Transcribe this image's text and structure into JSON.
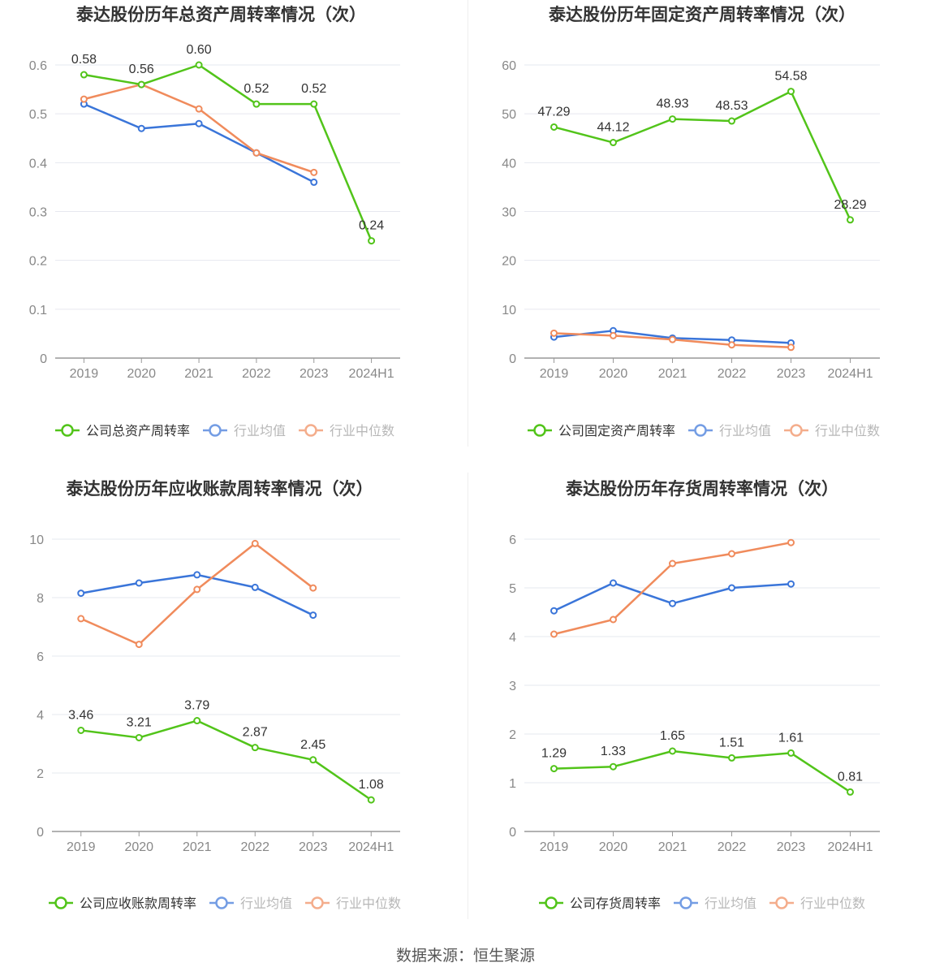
{
  "source": "数据来源：恒生聚源",
  "colors": {
    "company": "#52c41a",
    "avg": "#3a75d9",
    "median": "#f08b5c",
    "axis": "#999999",
    "grid": "#e6e8ef",
    "tick_text": "#888888",
    "title": "#333333"
  },
  "chart_data": [
    {
      "type": "line",
      "title": "泰达股份历年总资产周转率情况（次）",
      "categories": [
        "2019",
        "2020",
        "2021",
        "2022",
        "2023",
        "2024H1"
      ],
      "ylim": [
        0,
        0.6
      ],
      "yticks": [
        "0",
        "0.1",
        "0.2",
        "0.3",
        "0.4",
        "0.5",
        "0.6"
      ],
      "series": [
        {
          "name": "公司总资产周转率",
          "role": "company",
          "values": [
            0.58,
            0.56,
            0.6,
            0.52,
            0.52,
            0.24
          ],
          "labels": [
            "0.58",
            "0.56",
            "0.60",
            "0.52",
            "0.52",
            "0.24"
          ]
        },
        {
          "name": "行业均值",
          "role": "avg",
          "values": [
            0.52,
            0.47,
            0.48,
            0.42,
            0.36,
            null
          ]
        },
        {
          "name": "行业中位数",
          "role": "median",
          "values": [
            0.53,
            0.56,
            0.51,
            0.42,
            0.38,
            null
          ]
        }
      ],
      "grid": true,
      "legend": "bottom"
    },
    {
      "type": "line",
      "title": "泰达股份历年固定资产周转率情况（次）",
      "categories": [
        "2019",
        "2020",
        "2021",
        "2022",
        "2023",
        "2024H1"
      ],
      "ylim": [
        0,
        60
      ],
      "yticks": [
        "0",
        "10",
        "20",
        "30",
        "40",
        "50",
        "60"
      ],
      "series": [
        {
          "name": "公司固定资产周转率",
          "role": "company",
          "values": [
            47.29,
            44.12,
            48.93,
            48.53,
            54.58,
            28.29
          ],
          "labels": [
            "47.29",
            "44.12",
            "48.93",
            "48.53",
            "54.58",
            "28.29"
          ]
        },
        {
          "name": "行业均值",
          "role": "avg",
          "values": [
            4.3,
            5.6,
            4.1,
            3.7,
            3.1,
            null
          ]
        },
        {
          "name": "行业中位数",
          "role": "median",
          "values": [
            5.1,
            4.6,
            3.8,
            2.7,
            2.2,
            null
          ]
        }
      ],
      "grid": true,
      "legend": "bottom"
    },
    {
      "type": "line",
      "title": "泰达股份历年应收账款周转率情况（次）",
      "categories": [
        "2019",
        "2020",
        "2021",
        "2022",
        "2023",
        "2024H1"
      ],
      "ylim": [
        0,
        10
      ],
      "yticks": [
        "0",
        "2",
        "4",
        "6",
        "8",
        "10"
      ],
      "series": [
        {
          "name": "公司应收账款周转率",
          "role": "company",
          "values": [
            3.46,
            3.21,
            3.79,
            2.87,
            2.45,
            1.08
          ],
          "labels": [
            "3.46",
            "3.21",
            "3.79",
            "2.87",
            "2.45",
            "1.08"
          ]
        },
        {
          "name": "行业均值",
          "role": "avg",
          "values": [
            8.15,
            8.5,
            8.78,
            8.35,
            7.4,
            null
          ]
        },
        {
          "name": "行业中位数",
          "role": "median",
          "values": [
            7.28,
            6.4,
            8.28,
            9.85,
            8.33,
            null
          ]
        }
      ],
      "grid": true,
      "legend": "bottom"
    },
    {
      "type": "line",
      "title": "泰达股份历年存货周转率情况（次）",
      "categories": [
        "2019",
        "2020",
        "2021",
        "2022",
        "2023",
        "2024H1"
      ],
      "ylim": [
        0,
        6
      ],
      "yticks": [
        "0",
        "1",
        "2",
        "3",
        "4",
        "5",
        "6"
      ],
      "series": [
        {
          "name": "公司存货周转率",
          "role": "company",
          "values": [
            1.29,
            1.33,
            1.65,
            1.51,
            1.61,
            0.81
          ],
          "labels": [
            "1.29",
            "1.33",
            "1.65",
            "1.51",
            "1.61",
            "0.81"
          ]
        },
        {
          "name": "行业均值",
          "role": "avg",
          "values": [
            4.53,
            5.1,
            4.68,
            5.0,
            5.08,
            null
          ]
        },
        {
          "name": "行业中位数",
          "role": "median",
          "values": [
            4.05,
            4.35,
            5.5,
            5.7,
            5.93,
            null
          ]
        }
      ],
      "grid": true,
      "legend": "bottom"
    }
  ]
}
